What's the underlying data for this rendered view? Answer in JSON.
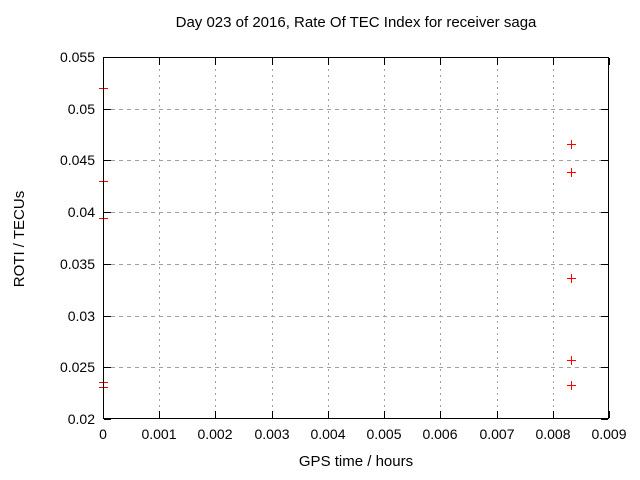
{
  "chart_data": {
    "type": "scatter",
    "title": "Day 023 of 2016, Rate Of TEC Index for receiver saga",
    "xlabel": "GPS time / hours",
    "ylabel": "ROTI / TECUs",
    "xlim": [
      0,
      0.009
    ],
    "ylim": [
      0.02,
      0.055
    ],
    "xticks": [
      "0",
      "0.001",
      "0.002",
      "0.003",
      "0.004",
      "0.005",
      "0.006",
      "0.007",
      "0.008",
      "0.009"
    ],
    "yticks": [
      "0.02",
      "0.025",
      "0.03",
      "0.035",
      "0.04",
      "0.045",
      "0.05",
      "0.055"
    ],
    "grid": true,
    "grid_style": "dashed",
    "legend_position": "none",
    "marker": "plus",
    "colors": {
      "marker": "#ff0000",
      "grid": "#a0a0a0",
      "axis": "#000000",
      "text": "#000000",
      "background": "#ffffff"
    },
    "series": [
      {
        "name": "ROTI",
        "points": [
          {
            "x": 0,
            "y": 0.052
          },
          {
            "x": 0,
            "y": 0.043
          },
          {
            "x": 0,
            "y": 0.0394
          },
          {
            "x": 0,
            "y": 0.0236
          },
          {
            "x": 0,
            "y": 0.0231
          },
          {
            "x": 0.00833,
            "y": 0.0466
          },
          {
            "x": 0.00833,
            "y": 0.0439
          },
          {
            "x": 0.00833,
            "y": 0.0336
          },
          {
            "x": 0.00833,
            "y": 0.0257
          },
          {
            "x": 0.00833,
            "y": 0.0233
          }
        ]
      }
    ]
  }
}
